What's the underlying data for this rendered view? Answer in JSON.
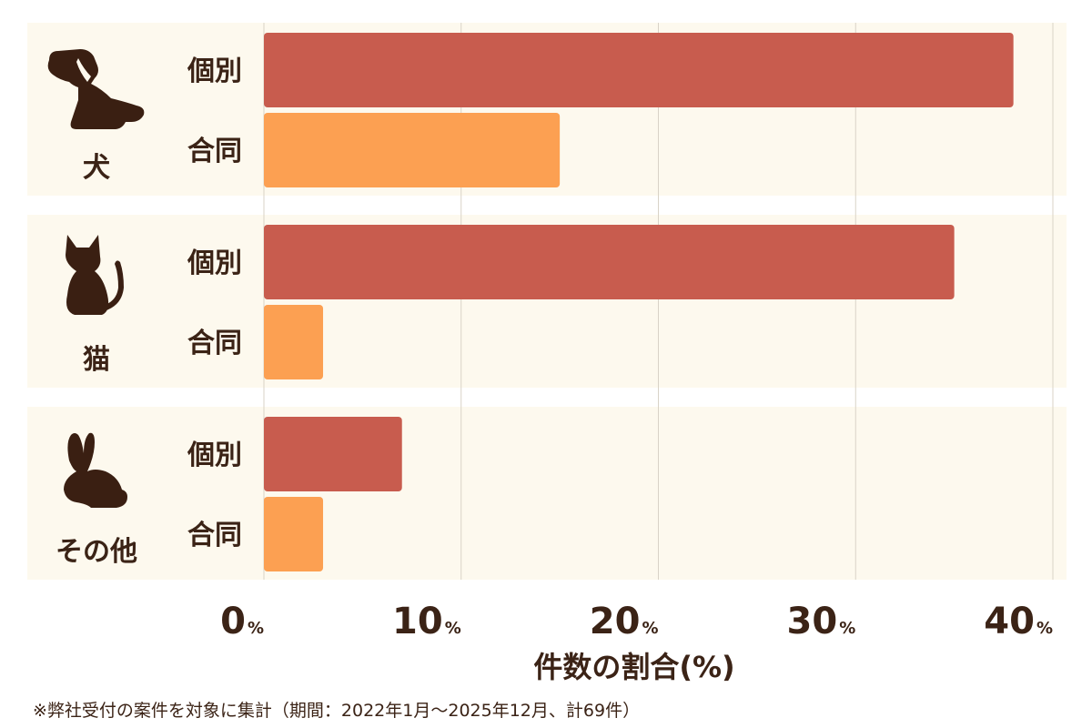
{
  "chart_data": {
    "type": "bar",
    "orientation": "horizontal",
    "groups": [
      {
        "label": "犬",
        "icon": "dog-icon"
      },
      {
        "label": "猫",
        "icon": "cat-icon"
      },
      {
        "label": "その他",
        "icon": "rabbit-icon"
      }
    ],
    "series": [
      {
        "name": "個別",
        "color": "#c85c4e",
        "values": [
          38,
          35,
          7
        ]
      },
      {
        "name": "合同",
        "color": "#fca052",
        "values": [
          15,
          3,
          3
        ]
      }
    ],
    "xlim": [
      0,
      40
    ],
    "xticks": [
      0,
      10,
      20,
      30,
      40
    ],
    "tick_unit": "%",
    "xlabel": "件数の割合(%)",
    "grid": true,
    "colors": {
      "panel_background": "#fdf9ee",
      "gridline": "#d9d3c7",
      "text": "#3b2316",
      "icon": "#3a1f12"
    }
  },
  "footnote": "※弊社受付の案件を対象に集計（期間：2022年1月〜2025年12月、計69件）"
}
